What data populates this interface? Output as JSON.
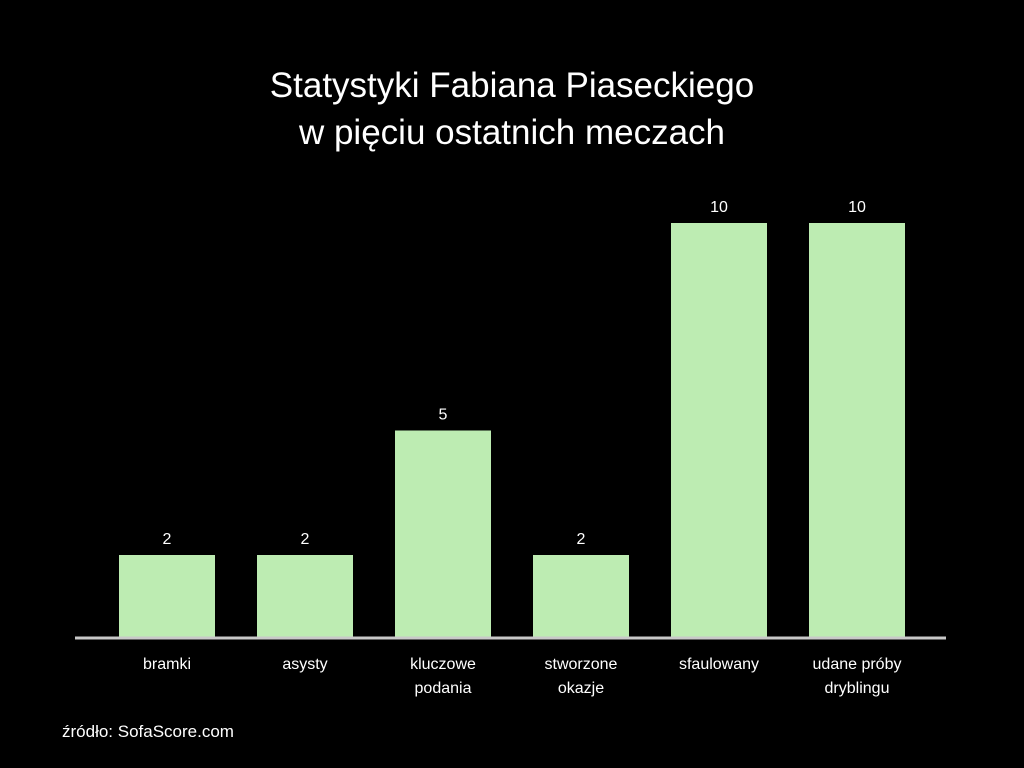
{
  "chart_data": {
    "type": "bar",
    "title": [
      "Statystyki Fabiana Piaseckiego",
      "w pięciu ostatnich meczach"
    ],
    "categories": [
      [
        "bramki"
      ],
      [
        "asysty"
      ],
      [
        "kluczowe",
        "podania"
      ],
      [
        "stworzone",
        "okazje"
      ],
      [
        "sfaulowany"
      ],
      [
        "udane próby",
        "dryblingu"
      ]
    ],
    "values": [
      2,
      2,
      5,
      2,
      10,
      10
    ],
    "ylim": [
      0,
      10
    ],
    "grid": false,
    "bar_color": "#bdecb2",
    "axis_color": "#c8c8c8",
    "background": "#000000"
  },
  "source": "źródło: SofaScore.com"
}
